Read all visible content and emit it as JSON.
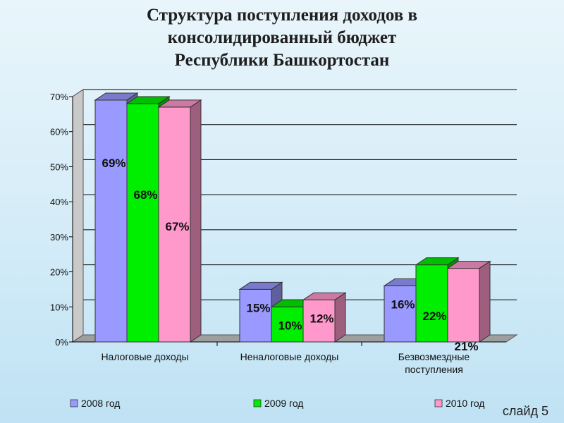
{
  "title_lines": [
    "Структура поступления доходов в",
    "консолидированный бюджет",
    "Республики Башкортостан"
  ],
  "slide_label": "слайд 5",
  "chart_data": {
    "type": "bar",
    "categories": [
      [
        "Налоговые доходы"
      ],
      [
        "Неналоговые доходы"
      ],
      [
        "Безвозмездные",
        "поступления"
      ]
    ],
    "series": [
      {
        "name": "2008 год",
        "values": [
          69,
          15,
          16
        ],
        "labels": [
          "69%",
          "15%",
          "16%"
        ],
        "color": "#9999ff"
      },
      {
        "name": "2009 год",
        "values": [
          68,
          10,
          22
        ],
        "labels": [
          "68%",
          "10%",
          "22%"
        ],
        "color": "#00ee00"
      },
      {
        "name": "2010 год",
        "values": [
          67,
          12,
          21
        ],
        "labels": [
          "67%",
          "12%",
          "21%"
        ],
        "color": "#ff99cc"
      }
    ],
    "ylim": [
      0,
      70
    ],
    "yticks": [
      0,
      10,
      20,
      30,
      40,
      50,
      60,
      70
    ],
    "ytick_labels": [
      "0%",
      "10%",
      "20%",
      "30%",
      "40%",
      "50%",
      "60%",
      "70%"
    ],
    "grid": true,
    "legend_position": "bottom",
    "style": "3d-clustered-column"
  }
}
